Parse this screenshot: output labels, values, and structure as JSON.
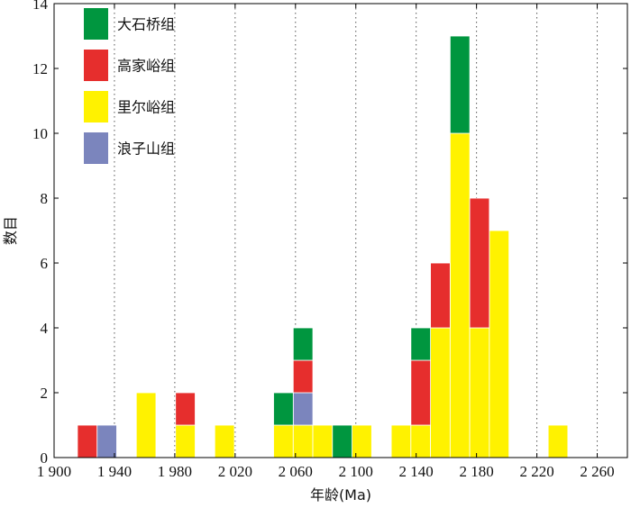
{
  "chart_data": {
    "type": "bar",
    "stacked": true,
    "xlabel": "年龄(Ma)",
    "ylabel": "数目",
    "xlim": [
      1900,
      2280
    ],
    "ylim": [
      0,
      14
    ],
    "bin_width": 13,
    "x_ticks": [
      1900,
      1940,
      1980,
      2020,
      2060,
      2100,
      2140,
      2180,
      2220,
      2260
    ],
    "x_tick_labels": [
      "1 900",
      "1 940",
      "1 980",
      "2 020",
      "2 060",
      "2 100",
      "2 140",
      "2 180",
      "2 220",
      "2 260"
    ],
    "y_ticks": [
      0,
      2,
      4,
      6,
      8,
      10,
      12,
      14
    ],
    "grid": "vertical-dotted",
    "legend_position": "top-left",
    "stack_order": [
      "里尔峪组",
      "浪子山组",
      "高家峪组",
      "大石桥组"
    ],
    "series": [
      {
        "name": "大石桥组",
        "color": "#00963f",
        "points": [
          [
            2052,
            1
          ],
          [
            2065,
            1
          ],
          [
            2091,
            1
          ],
          [
            2143,
            1
          ],
          [
            2169,
            3
          ]
        ]
      },
      {
        "name": "高家峪组",
        "color": "#e62e2d",
        "points": [
          [
            1922,
            1
          ],
          [
            1987,
            1
          ],
          [
            2065,
            1
          ],
          [
            2143,
            2
          ],
          [
            2156,
            2
          ],
          [
            2182,
            4
          ]
        ]
      },
      {
        "name": "里尔峪组",
        "color": "#fff200",
        "points": [
          [
            1961,
            2
          ],
          [
            1987,
            1
          ],
          [
            2013,
            1
          ],
          [
            2052,
            1
          ],
          [
            2065,
            1
          ],
          [
            2078,
            1
          ],
          [
            2104,
            1
          ],
          [
            2130,
            1
          ],
          [
            2143,
            1
          ],
          [
            2156,
            4
          ],
          [
            2169,
            10
          ],
          [
            2182,
            4
          ],
          [
            2195,
            7
          ],
          [
            2234,
            1
          ]
        ]
      },
      {
        "name": "浪子山组",
        "color": "#7b85bd",
        "points": [
          [
            1935,
            1
          ],
          [
            2065,
            1
          ]
        ]
      }
    ]
  }
}
